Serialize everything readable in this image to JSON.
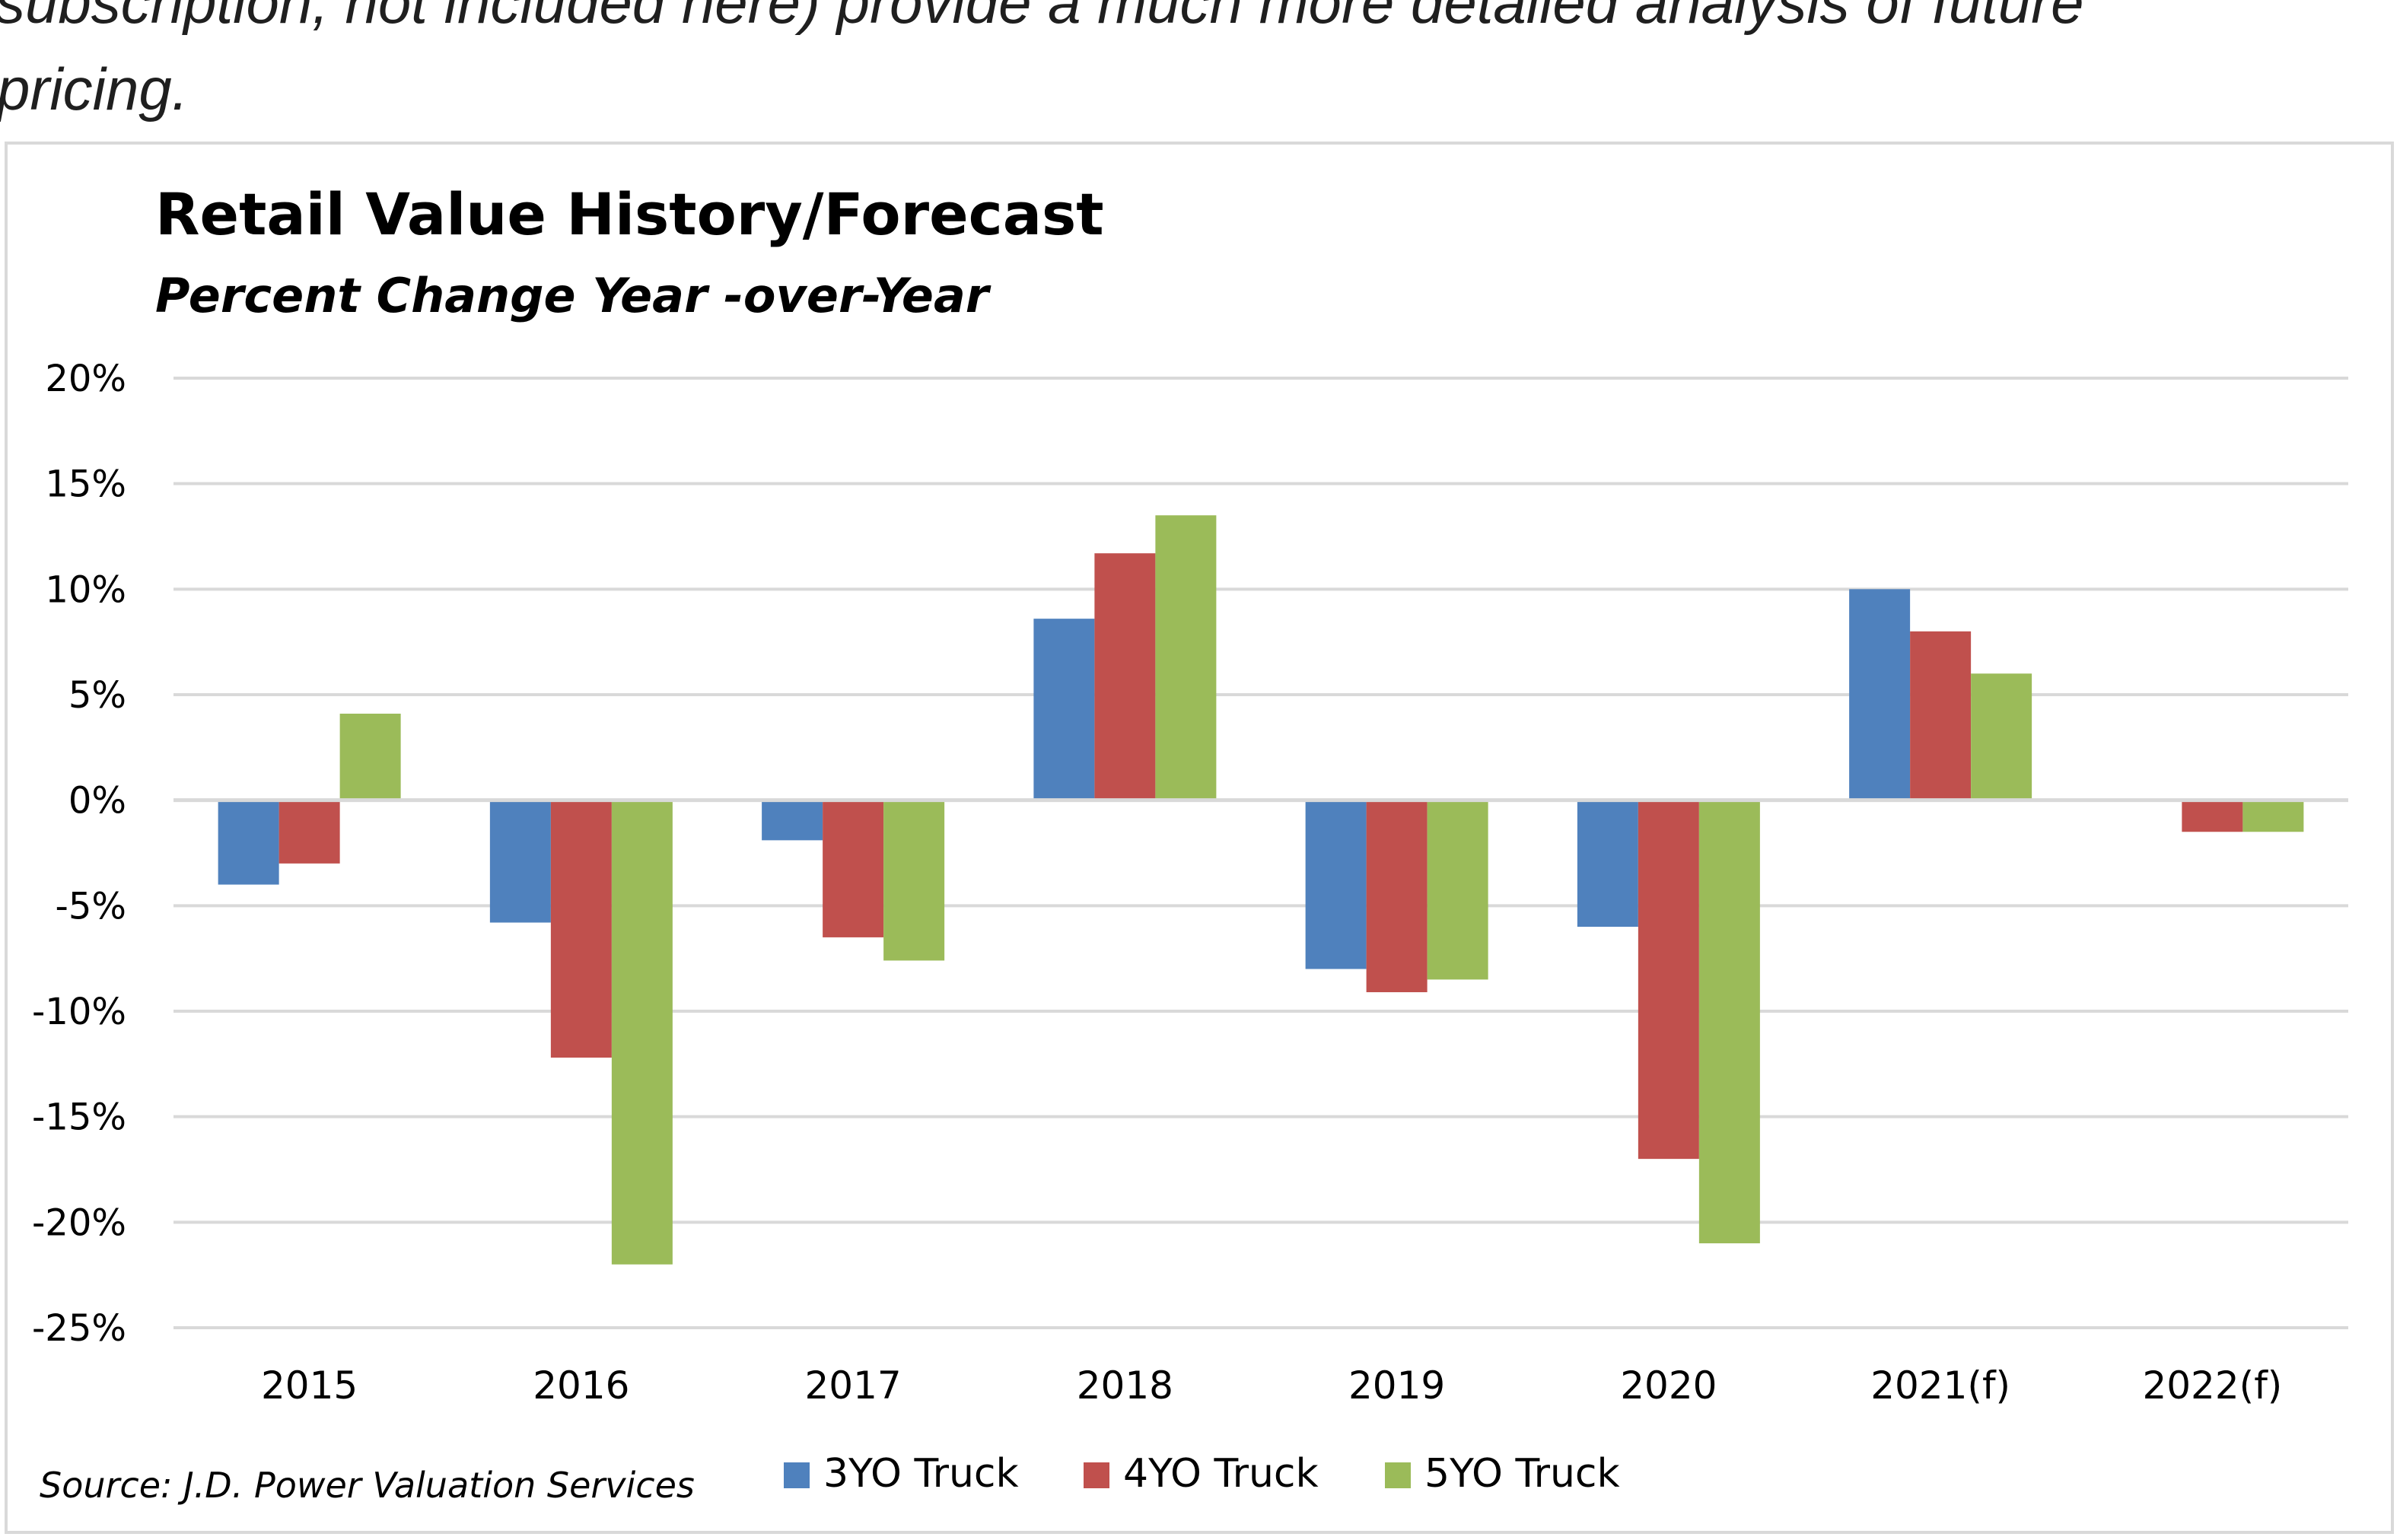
{
  "intro": {
    "line1": "subscription, not included here) provide a much more detailed analysis of future",
    "line2": "pricing."
  },
  "colors": {
    "series": [
      "#4f81bd",
      "#c0504d",
      "#9bbb59"
    ],
    "grid": "#d9d9d9",
    "text": "#000000"
  },
  "chart_data": {
    "type": "bar",
    "title": "Retail Value History/Forecast",
    "subtitle": "Percent Change Year -over-Year",
    "source": "Source: J.D. Power Valuation Services",
    "xlabel": "",
    "ylabel": "",
    "categories": [
      "2015",
      "2016",
      "2017",
      "2018",
      "2019",
      "2020",
      "2021(f)",
      "2022(f)"
    ],
    "series": [
      {
        "name": "3YO Truck",
        "values": [
          -4,
          -5.8,
          -1.9,
          8.6,
          -8,
          -6,
          10,
          0
        ]
      },
      {
        "name": "4YO Truck",
        "values": [
          -3,
          -12.2,
          -6.5,
          11.7,
          -9.1,
          -17,
          8,
          -1.5
        ]
      },
      {
        "name": "5YO Truck",
        "values": [
          4.1,
          -22,
          -7.6,
          13.5,
          -8.5,
          -21,
          6,
          -1.5
        ]
      }
    ],
    "ylim": [
      -25,
      20
    ],
    "yticks": [
      20,
      15,
      10,
      5,
      0,
      -5,
      -10,
      -15,
      -20,
      -25
    ],
    "ytick_labels": [
      "20%",
      "15%",
      "10%",
      "5%",
      "0%",
      "-5%",
      "-10%",
      "-15%",
      "-20%",
      "-25%"
    ],
    "grid": true,
    "legend": "bottom"
  }
}
